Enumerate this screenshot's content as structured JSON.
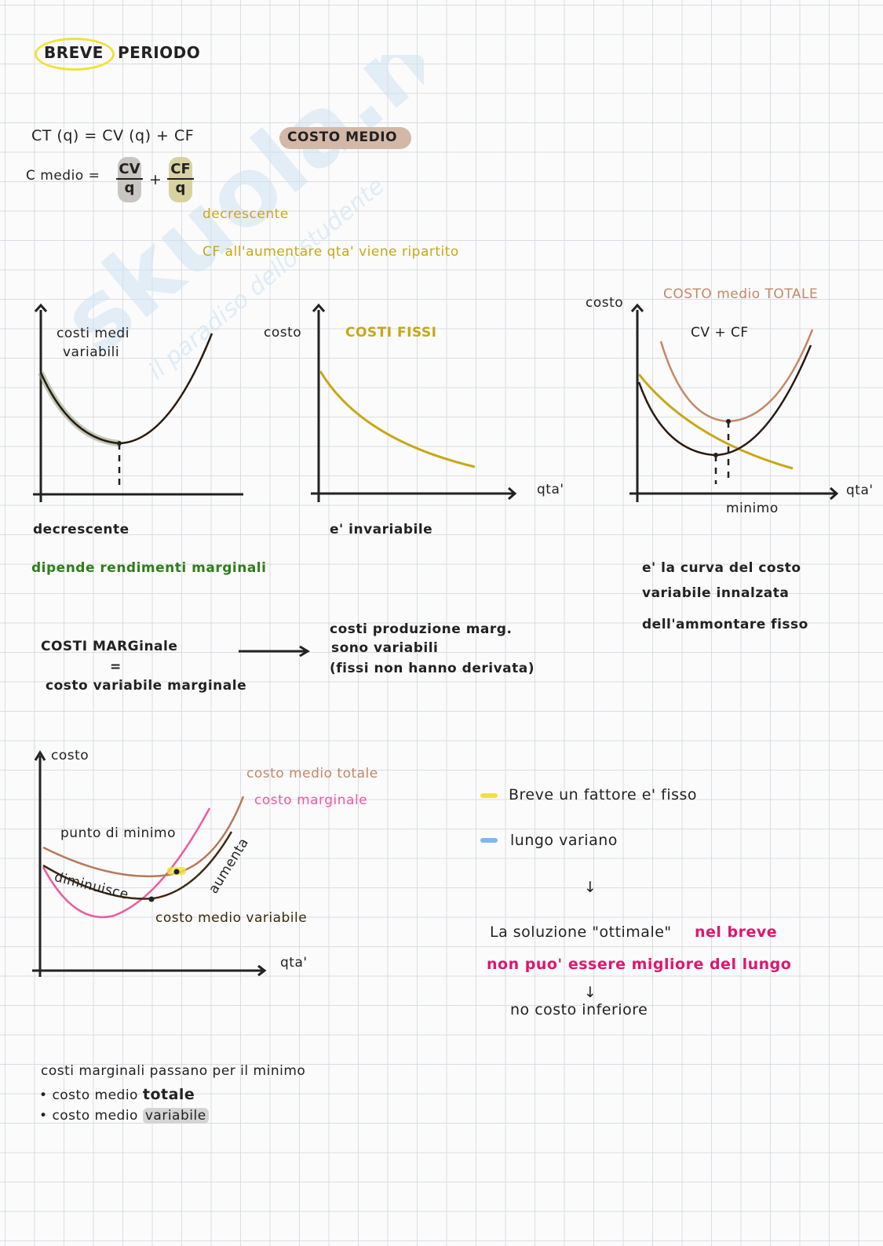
{
  "header": {
    "title_breve": "BREVE",
    "title_periodo": "PERIODO"
  },
  "formulas": {
    "ct": "CT (q) = CV (q) + CF",
    "costo_medio_badge": "COSTO MEDIO",
    "c_medio_label": "C medio =",
    "frac1_num": "CV",
    "frac1_den": "q",
    "plus": "+",
    "frac2_num": "CF",
    "frac2_den": "q",
    "decrescente": "decrescente",
    "cf_note": "CF all'aumentare qta' viene ripartito"
  },
  "graph1": {
    "curve_label_1": "costi medi",
    "curve_label_2": "variabili",
    "caption": "decrescente",
    "note": "dipende rendimenti marginali"
  },
  "graph2": {
    "y_label": "costo",
    "curve_label": "COSTI FISSI",
    "x_label": "qta'",
    "caption": "e' invariabile"
  },
  "graph3": {
    "y_label": "costo",
    "title": "COSTO medio TOTALE",
    "curve_label": "CV + CF",
    "x_label": "qta'",
    "min_label": "minimo",
    "note_1": "e' la curva del costo",
    "note_2": "variabile innalzata",
    "note_3": "dell'ammontare fisso"
  },
  "marginal": {
    "left_1": "COSTI MARGinale",
    "left_eq": "=",
    "left_2": "costo variabile marginale",
    "right_1": "costi produzione marg.",
    "right_2": "sono variabili",
    "right_3": "(fissi non hanno derivata)"
  },
  "graph4": {
    "y_label": "costo",
    "x_label": "qta'",
    "label_cmt": "costo medio totale",
    "label_cm": "costo marginale",
    "label_min": "punto di minimo",
    "label_dim": "diminuisce",
    "label_aum": "aumenta",
    "label_cmv": "costo medio variabile"
  },
  "legend": {
    "breve": "Breve  un fattore  e' fisso",
    "lungo": "lungo  variano",
    "arrow": "↓",
    "sol_1": "La soluzione \"ottimale\"",
    "sol_1b": "nel breve",
    "sol_2": "non puo' essere migliore  del lungo",
    "arrow2": "↓",
    "sol_3": "no costo inferiore",
    "yellow": "#f1e23a",
    "blue": "#7ab8f0",
    "magenta": "#e0156e"
  },
  "footer": {
    "line": "costi marginali passano per il minimo",
    "bullet_1_a": "costo medio",
    "bullet_1_b": "totale",
    "bullet_2_a": "costo medio",
    "bullet_2_b": "variabile"
  },
  "watermark": {
    "brand": "skuola.net",
    "tagline": "il paradiso dello studente"
  },
  "colors": {
    "gold": "#c9a714",
    "tan": "#c48767",
    "green": "#2f7d1b",
    "pink": "#ec5aa0",
    "dark": "#2a1a10",
    "avg_var": "#3c2a0d",
    "cmt_brown": "#b57a5c"
  }
}
